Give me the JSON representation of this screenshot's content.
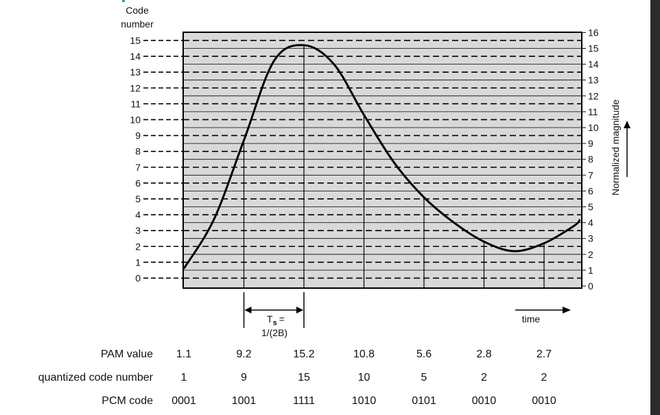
{
  "chart_data": {
    "type": "line",
    "title": "",
    "left_axis": {
      "label_line1": "Code",
      "label_line2": "number",
      "ticks": [
        "0",
        "1",
        "2",
        "3",
        "4",
        "5",
        "6",
        "7",
        "8",
        "9",
        "10",
        "11",
        "12",
        "13",
        "14",
        "15"
      ]
    },
    "right_axis": {
      "label": "Normalized magnitude",
      "ticks": [
        "0",
        "1",
        "2",
        "3",
        "4",
        "5",
        "6",
        "7",
        "8",
        "9",
        "10",
        "11",
        "12",
        "13",
        "14",
        "15",
        "16"
      ],
      "ylim": [
        0,
        16
      ]
    },
    "curve": {
      "x": [
        0,
        0.5,
        1,
        1.5,
        2,
        2.5,
        3,
        3.5,
        4,
        4.5,
        5,
        5.5,
        6,
        6.5,
        6.6
      ],
      "y": [
        1.1,
        4.2,
        9.2,
        14.2,
        15.2,
        14.0,
        10.8,
        7.8,
        5.6,
        4.0,
        2.8,
        2.2,
        2.7,
        3.8,
        4.2
      ]
    },
    "samples": [
      {
        "t": 0,
        "pam": "1.1",
        "code": "1",
        "pcm": "0001"
      },
      {
        "t": 1,
        "pam": "9.2",
        "code": "9",
        "pcm": "1001"
      },
      {
        "t": 2,
        "pam": "15.2",
        "code": "15",
        "pcm": "1111"
      },
      {
        "t": 3,
        "pam": "10.8",
        "code": "10",
        "pcm": "1010"
      },
      {
        "t": 4,
        "pam": "5.6",
        "code": "5",
        "pcm": "0101"
      },
      {
        "t": 5,
        "pam": "2.8",
        "code": "2",
        "pcm": "0010"
      },
      {
        "t": 6,
        "pam": "2.7",
        "code": "2",
        "pcm": "0010"
      }
    ],
    "ts_label_main": "T",
    "ts_label_sub": "s",
    "ts_label_eq": "=",
    "ts_label_line2": "1/(2B)",
    "time_label": "time",
    "table_row_labels": [
      "PAM value",
      "quantized code number",
      "PCM code"
    ]
  },
  "colors": {
    "plot_bg": "#d9d9d9",
    "curve": "#000000",
    "grid": "#000000"
  }
}
